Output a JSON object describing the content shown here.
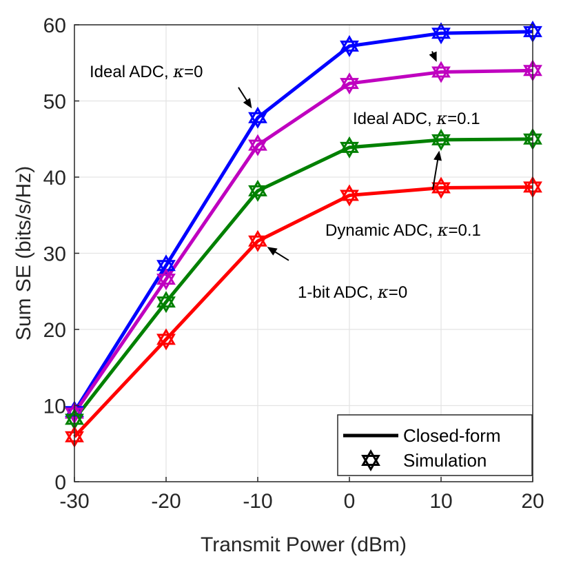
{
  "chart_data": {
    "type": "line",
    "title": "",
    "xlabel": "Transmit Power (dBm)",
    "ylabel": "Sum SE (bits/s/Hz)",
    "x": [
      -30,
      -20,
      -10,
      0,
      10,
      20
    ],
    "xticks": [
      "-30",
      "-20",
      "-10",
      "0",
      "10",
      "20"
    ],
    "yticks": [
      "0",
      "10",
      "20",
      "30",
      "40",
      "50",
      "60"
    ],
    "xlim": [
      -30,
      20
    ],
    "ylim": [
      0,
      60
    ],
    "grid": true,
    "series": [
      {
        "name": "Ideal ADC, κ=0",
        "color": "#0000ff",
        "values": [
          9.2,
          28.4,
          47.8,
          57.2,
          58.9,
          59.1
        ]
      },
      {
        "name": "Ideal ADC, κ=0.1",
        "color": "#bf00bf",
        "values": [
          9.0,
          26.6,
          44.2,
          52.3,
          53.8,
          54.0
        ]
      },
      {
        "name": "Dynamic ADC, κ=0.1",
        "color": "#008000",
        "values": [
          8.2,
          23.6,
          38.2,
          43.9,
          44.9,
          45.0
        ]
      },
      {
        "name": "1-bit ADC, κ=0",
        "color": "#ff0000",
        "values": [
          5.9,
          18.7,
          31.6,
          37.6,
          38.6,
          38.7
        ]
      }
    ],
    "annotations": [
      {
        "prefix": "Ideal ADC, ",
        "kappa": "κ",
        "suffix": "=0",
        "target_series": 0,
        "target_x": -10
      },
      {
        "prefix": "Ideal ADC, ",
        "kappa": "κ",
        "suffix": "=0.1",
        "target_series": 1,
        "target_x": 10
      },
      {
        "prefix": "Dynamic ADC, ",
        "kappa": "κ",
        "suffix": "=0.1",
        "target_series": 2,
        "target_x": 10
      },
      {
        "prefix": "1-bit ADC, ",
        "kappa": "κ",
        "suffix": "=0",
        "target_series": 3,
        "target_x": -10
      }
    ],
    "legend": {
      "position": "bottom-right",
      "entries": [
        {
          "label": "Closed-form",
          "marker": "line"
        },
        {
          "label": "Simulation",
          "marker": "hexagram"
        }
      ]
    }
  }
}
